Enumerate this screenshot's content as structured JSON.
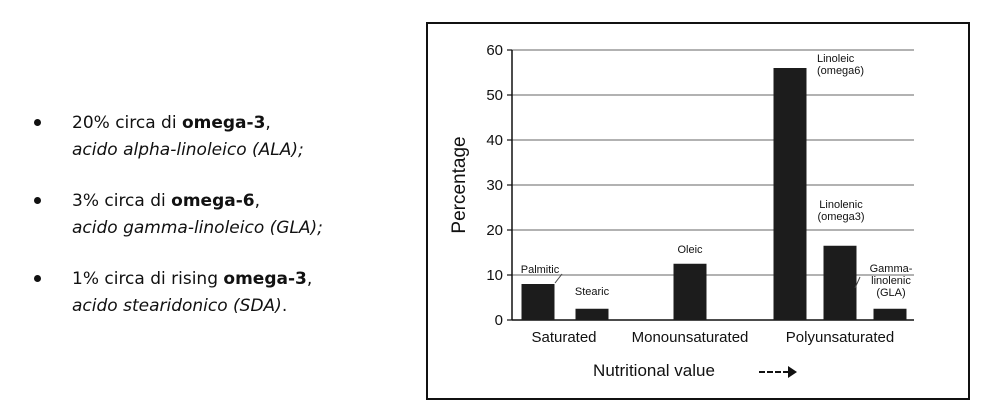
{
  "bullets": [
    {
      "t1_pre": "20% circa di ",
      "t1_bold": "omega-3",
      "t1_post": ",",
      "t2": "acido alpha-linoleico (ALA);",
      "t2_post": ""
    },
    {
      "t1_pre": "3% circa di ",
      "t1_bold": "omega-6",
      "t1_post": ",",
      "t2": "acido gamma-linoleico (GLA);",
      "t2_post": ""
    },
    {
      "t1_pre": "1% circa di rising ",
      "t1_bold": "omega-3",
      "t1_post": ",",
      "t2": "acido stearidonico (SDA)",
      "t2_post": "."
    }
  ],
  "chart_data": {
    "type": "bar",
    "title": "",
    "xlabel": "Nutritional value",
    "xlabel_arrow": "→",
    "ylabel": "Percentage",
    "ylim": [
      0,
      60
    ],
    "yticks": [
      "0",
      "10",
      "20",
      "30",
      "40",
      "50",
      "60"
    ],
    "grid": true,
    "bar_color": "#1c1c1c",
    "groups": [
      "Saturated",
      "Monounsaturated",
      "Polyunsaturated"
    ],
    "bars": [
      {
        "group": "Saturated",
        "label": [
          "Palmitic"
        ],
        "value": 8
      },
      {
        "group": "Saturated",
        "label": [
          "Stearic"
        ],
        "value": 2.5
      },
      {
        "group": "Monounsaturated",
        "label": [
          "Oleic"
        ],
        "value": 12.5
      },
      {
        "group": "Polyunsaturated",
        "label": [
          "Linoleic",
          "(omega6)"
        ],
        "value": 56
      },
      {
        "group": "Polyunsaturated",
        "label": [
          "Linolenic",
          "(omega3)"
        ],
        "value": 16.5
      },
      {
        "group": "Polyunsaturated",
        "label": [
          "Gamma-",
          "linolenic",
          "(GLA)"
        ],
        "value": 2.5
      }
    ]
  }
}
